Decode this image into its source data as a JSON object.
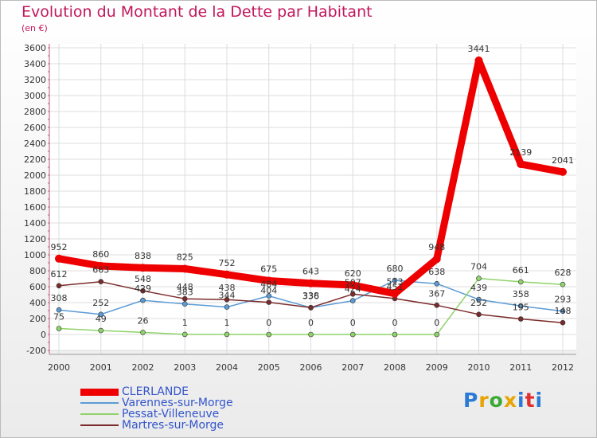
{
  "title": "Evolution du Montant de la Dette par Habitant",
  "subtitle": "(en €)",
  "logo": {
    "text": "Proxiti",
    "colors": [
      "#2b7bd6",
      "#e8a400",
      "#3aaa35",
      "#e8a400",
      "#2b7bd6",
      "#e03030",
      "#2b7bd6"
    ]
  },
  "chart_data": {
    "type": "line",
    "x": [
      2000,
      2001,
      2002,
      2003,
      2004,
      2005,
      2006,
      2007,
      2008,
      2009,
      2010,
      2011,
      2012
    ],
    "ylim": [
      -200,
      3600
    ],
    "yticks": [
      -200,
      0,
      200,
      400,
      600,
      800,
      1000,
      1200,
      1400,
      1600,
      1800,
      2000,
      2200,
      2400,
      2600,
      2800,
      3000,
      3200,
      3400,
      3600
    ],
    "grid": true,
    "legend_position": "bottom-left",
    "series": [
      {
        "name": "CLERLANDE",
        "color": "#ee0000",
        "values": [
          952,
          860,
          838,
          825,
          752,
          675,
          643,
          620,
          513,
          948,
          3441,
          2139,
          2041
        ]
      },
      {
        "name": "Varennes-sur-Morge",
        "color": "#5b9bd5",
        "values": [
          308,
          252,
          429,
          383,
          344,
          484,
          336,
          424,
          680,
          638,
          439,
          358,
          293
        ]
      },
      {
        "name": "Pessat-Villeneuve",
        "color": "#8fd36a",
        "values": [
          75,
          49,
          26,
          1,
          1,
          0,
          0,
          0,
          0,
          0,
          704,
          661,
          628
        ]
      },
      {
        "name": "Martres-sur-Morge",
        "color": "#7b2b2b",
        "values": [
          612,
          663,
          548,
          448,
          438,
          404,
          338,
          507,
          451,
          367,
          252,
          195,
          148
        ]
      }
    ]
  }
}
